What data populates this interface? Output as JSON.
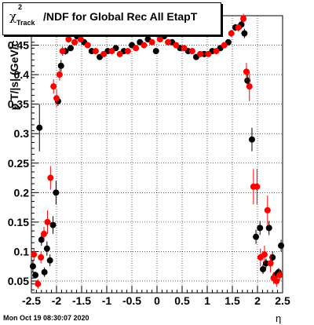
{
  "chart_data": {
    "type": "scatter",
    "title": "/NDF for Global Rec All EtapT",
    "title_symbol": "χ",
    "title_sup": "2",
    "title_sub": "Track",
    "xlabel": "η",
    "ylabel": "p T/|s| (GeV/c",
    "xlim": [
      -2.5,
      2.5
    ],
    "ylim": [
      0.03,
      0.5
    ],
    "x_ticks": [
      "-2.5",
      "-2",
      "-1.5",
      "-1",
      "-0.5",
      "0",
      "0.5",
      "1",
      "1.5",
      "2",
      "2.5"
    ],
    "y_ticks": [
      "0.05",
      "0.1",
      "0.15",
      "0.2",
      "0.25",
      "0.3",
      "0.35",
      "0.4",
      "0.45"
    ],
    "grid": true,
    "colors": {
      "series_black": "#000000",
      "series_red": "#ff0000"
    },
    "series": [
      {
        "color": "#000000",
        "points": [
          {
            "x": -2.47,
            "y": 0.075,
            "e": 0.01
          },
          {
            "x": -2.42,
            "y": 0.06,
            "e": 0.006
          },
          {
            "x": -2.34,
            "y": 0.31,
            "e": 0.04
          },
          {
            "x": -2.3,
            "y": 0.12,
            "e": 0.01
          },
          {
            "x": -2.24,
            "y": 0.065,
            "e": 0.008
          },
          {
            "x": -2.19,
            "y": 0.105,
            "e": 0.012
          },
          {
            "x": -2.13,
            "y": 0.085,
            "e": 0.01
          },
          {
            "x": -2.07,
            "y": 0.145,
            "e": 0.015
          },
          {
            "x": -2.01,
            "y": 0.2,
            "e": 0.02
          },
          {
            "x": -1.97,
            "y": 0.355,
            "e": 0.008
          },
          {
            "x": -1.91,
            "y": 0.415,
            "e": 0.01
          },
          {
            "x": -1.82,
            "y": 0.44,
            "e": 0.006
          },
          {
            "x": -1.72,
            "y": 0.445,
            "e": 0.005
          },
          {
            "x": -1.59,
            "y": 0.465,
            "e": 0.005
          },
          {
            "x": -1.45,
            "y": 0.455,
            "e": 0.005
          },
          {
            "x": -1.3,
            "y": 0.44,
            "e": 0.005
          },
          {
            "x": -1.14,
            "y": 0.43,
            "e": 0.005
          },
          {
            "x": -0.98,
            "y": 0.44,
            "e": 0.005
          },
          {
            "x": -0.82,
            "y": 0.445,
            "e": 0.005
          },
          {
            "x": -0.66,
            "y": 0.44,
            "e": 0.005
          },
          {
            "x": -0.5,
            "y": 0.45,
            "e": 0.005
          },
          {
            "x": -0.34,
            "y": 0.455,
            "e": 0.005
          },
          {
            "x": -0.18,
            "y": 0.46,
            "e": 0.005
          },
          {
            "x": -0.02,
            "y": 0.44,
            "e": 0.005
          },
          {
            "x": 0.14,
            "y": 0.465,
            "e": 0.005
          },
          {
            "x": 0.3,
            "y": 0.455,
            "e": 0.005
          },
          {
            "x": 0.46,
            "y": 0.445,
            "e": 0.005
          },
          {
            "x": 0.62,
            "y": 0.44,
            "e": 0.005
          },
          {
            "x": 0.78,
            "y": 0.43,
            "e": 0.005
          },
          {
            "x": 0.94,
            "y": 0.435,
            "e": 0.005
          },
          {
            "x": 1.1,
            "y": 0.44,
            "e": 0.005
          },
          {
            "x": 1.26,
            "y": 0.445,
            "e": 0.005
          },
          {
            "x": 1.42,
            "y": 0.455,
            "e": 0.005
          },
          {
            "x": 1.56,
            "y": 0.48,
            "e": 0.006
          },
          {
            "x": 1.68,
            "y": 0.485,
            "e": 0.007
          },
          {
            "x": 1.74,
            "y": 0.47,
            "e": 0.008
          },
          {
            "x": 1.8,
            "y": 0.39,
            "e": 0.012
          },
          {
            "x": 1.89,
            "y": 0.29,
            "e": 0.02
          },
          {
            "x": 1.97,
            "y": 0.125,
            "e": 0.012
          },
          {
            "x": 2.05,
            "y": 0.14,
            "e": 0.012
          },
          {
            "x": 2.11,
            "y": 0.07,
            "e": 0.008
          },
          {
            "x": 2.17,
            "y": 0.08,
            "e": 0.008
          },
          {
            "x": 2.23,
            "y": 0.14,
            "e": 0.012
          },
          {
            "x": 2.3,
            "y": 0.09,
            "e": 0.01
          },
          {
            "x": 2.36,
            "y": 0.06,
            "e": 0.007
          },
          {
            "x": 2.42,
            "y": 0.065,
            "e": 0.007
          },
          {
            "x": 2.47,
            "y": 0.11,
            "e": 0.01
          }
        ]
      },
      {
        "color": "#ff0000",
        "points": [
          {
            "x": -2.45,
            "y": 0.095,
            "e": 0.01
          },
          {
            "x": -2.37,
            "y": 0.045,
            "e": 0.008
          },
          {
            "x": -2.31,
            "y": 0.09,
            "e": 0.01
          },
          {
            "x": -2.25,
            "y": 0.13,
            "e": 0.012
          },
          {
            "x": -2.18,
            "y": 0.15,
            "e": 0.02
          },
          {
            "x": -2.12,
            "y": 0.225,
            "e": 0.02
          },
          {
            "x": -2.06,
            "y": 0.38,
            "e": 0.012
          },
          {
            "x": -2.0,
            "y": 0.36,
            "e": 0.015
          },
          {
            "x": -1.94,
            "y": 0.4,
            "e": 0.01
          },
          {
            "x": -1.88,
            "y": 0.44,
            "e": 0.008
          },
          {
            "x": -1.76,
            "y": 0.46,
            "e": 0.006
          },
          {
            "x": -1.64,
            "y": 0.455,
            "e": 0.005
          },
          {
            "x": -1.52,
            "y": 0.46,
            "e": 0.005
          },
          {
            "x": -1.38,
            "y": 0.45,
            "e": 0.005
          },
          {
            "x": -1.22,
            "y": 0.44,
            "e": 0.005
          },
          {
            "x": -1.06,
            "y": 0.435,
            "e": 0.005
          },
          {
            "x": -0.9,
            "y": 0.44,
            "e": 0.005
          },
          {
            "x": -0.74,
            "y": 0.435,
            "e": 0.005
          },
          {
            "x": -0.58,
            "y": 0.44,
            "e": 0.005
          },
          {
            "x": -0.42,
            "y": 0.445,
            "e": 0.005
          },
          {
            "x": -0.26,
            "y": 0.45,
            "e": 0.005
          },
          {
            "x": -0.1,
            "y": 0.455,
            "e": 0.005
          },
          {
            "x": 0.06,
            "y": 0.46,
            "e": 0.005
          },
          {
            "x": 0.22,
            "y": 0.455,
            "e": 0.005
          },
          {
            "x": 0.38,
            "y": 0.45,
            "e": 0.005
          },
          {
            "x": 0.54,
            "y": 0.445,
            "e": 0.005
          },
          {
            "x": 0.7,
            "y": 0.44,
            "e": 0.005
          },
          {
            "x": 0.86,
            "y": 0.435,
            "e": 0.005
          },
          {
            "x": 1.02,
            "y": 0.435,
            "e": 0.005
          },
          {
            "x": 1.18,
            "y": 0.44,
            "e": 0.005
          },
          {
            "x": 1.34,
            "y": 0.45,
            "e": 0.005
          },
          {
            "x": 1.48,
            "y": 0.47,
            "e": 0.006
          },
          {
            "x": 1.62,
            "y": 0.48,
            "e": 0.007
          },
          {
            "x": 1.72,
            "y": 0.495,
            "e": 0.008
          },
          {
            "x": 1.78,
            "y": 0.405,
            "e": 0.015
          },
          {
            "x": 1.84,
            "y": 0.38,
            "e": 0.025
          },
          {
            "x": 1.92,
            "y": 0.21,
            "e": 0.03
          },
          {
            "x": 1.99,
            "y": 0.21,
            "e": 0.03
          },
          {
            "x": 2.06,
            "y": 0.09,
            "e": 0.015
          },
          {
            "x": 2.14,
            "y": 0.095,
            "e": 0.015
          },
          {
            "x": 2.2,
            "y": 0.17,
            "e": 0.025
          },
          {
            "x": 2.26,
            "y": 0.08,
            "e": 0.015
          },
          {
            "x": 2.32,
            "y": 0.055,
            "e": 0.01
          },
          {
            "x": 2.38,
            "y": 0.05,
            "e": 0.01
          },
          {
            "x": 2.44,
            "y": 0.06,
            "e": 0.01
          }
        ]
      }
    ]
  },
  "footer": {
    "date": "Mon Oct 19 08:30:07 2020"
  }
}
